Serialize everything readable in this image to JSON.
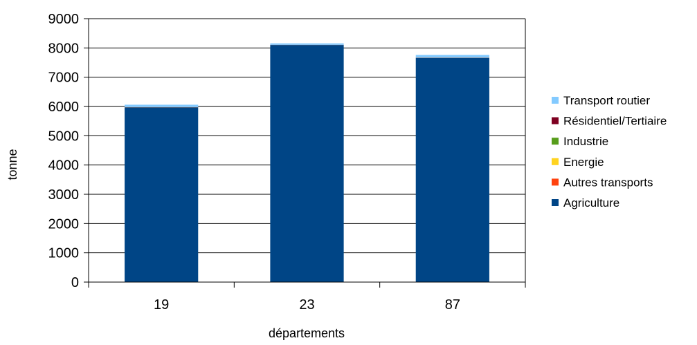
{
  "chart_data": {
    "type": "bar",
    "stacked": true,
    "xlabel": "départements",
    "ylabel": "tonne",
    "categories": [
      "19",
      "23",
      "87"
    ],
    "ylim": [
      0,
      9000
    ],
    "yticks": [
      0,
      1000,
      2000,
      3000,
      4000,
      5000,
      6000,
      7000,
      8000,
      9000
    ],
    "grid": true,
    "legend_position": "right",
    "series": [
      {
        "name": "Agriculture",
        "color": "#004586",
        "values": [
          5970,
          8100,
          7660
        ]
      },
      {
        "name": "Autres transports",
        "color": "#ff420e",
        "values": [
          3,
          2,
          3
        ]
      },
      {
        "name": "Energie",
        "color": "#ffd320",
        "values": [
          0,
          0,
          0
        ]
      },
      {
        "name": "Industrie",
        "color": "#579d1c",
        "values": [
          2,
          1,
          2
        ]
      },
      {
        "name": "Résidentiel/Tertiaire",
        "color": "#7e0021",
        "values": [
          5,
          3,
          5
        ]
      },
      {
        "name": "Transport routier",
        "color": "#83caff",
        "values": [
          80,
          50,
          90
        ]
      }
    ],
    "legend_order": [
      "Transport routier",
      "Résidentiel/Tertiaire",
      "Industrie",
      "Energie",
      "Autres transports",
      "Agriculture"
    ]
  }
}
